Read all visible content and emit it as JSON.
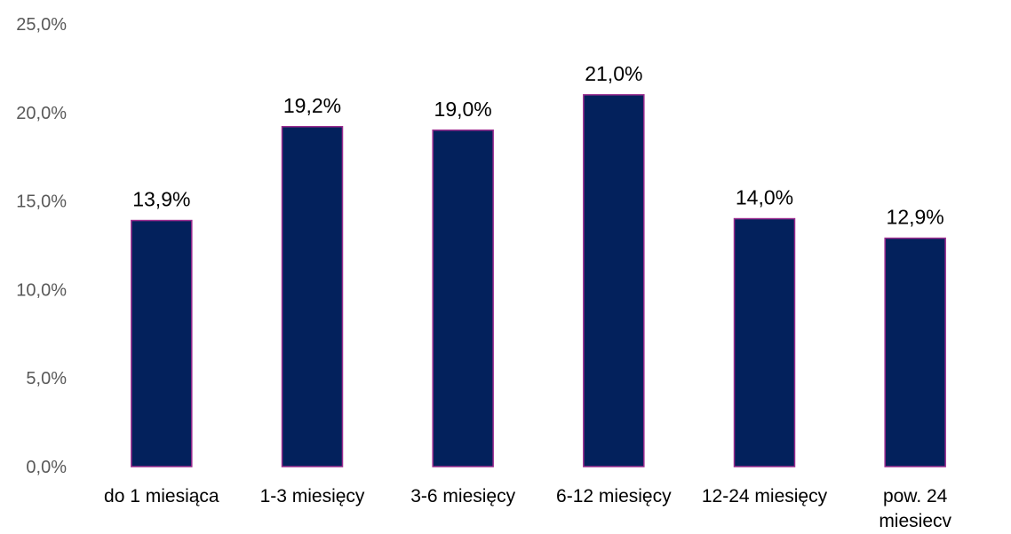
{
  "chart_data": {
    "type": "bar",
    "categories": [
      [
        "do 1 miesiąca"
      ],
      [
        "1-3 miesięcy"
      ],
      [
        "3-6 miesięcy"
      ],
      [
        "6-12 miesięcy"
      ],
      [
        "12-24 miesięcy"
      ],
      [
        "pow. 24",
        "miesiecv"
      ]
    ],
    "values": [
      13.9,
      19.2,
      19.0,
      21.0,
      14.0,
      12.9
    ],
    "value_labels": [
      "13,9%",
      "19,2%",
      "19,0%",
      "21,0%",
      "14,0%",
      "12,9%"
    ],
    "ylim": [
      0,
      25
    ],
    "yticks": [
      0,
      5,
      10,
      15,
      20,
      25
    ],
    "ytick_labels": [
      "0,0%",
      "5,0%",
      "10,0%",
      "15,0%",
      "20,0%",
      "25,0%"
    ],
    "grid": false,
    "legend": "none",
    "colors": {
      "bar_fill": "#03215c",
      "bar_border": "#9b2c8f",
      "tick_text": "#595959",
      "label_text": "#000000"
    }
  }
}
